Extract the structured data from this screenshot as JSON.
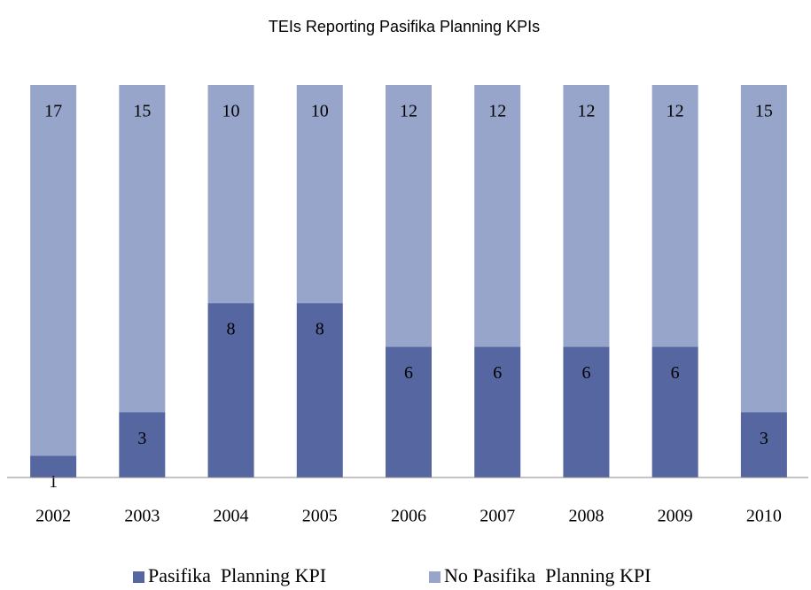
{
  "chart_data": {
    "type": "stacked_bar",
    "title": "TEIs Reporting Pasifika Planning KPIs",
    "categories": [
      "2002",
      "2003",
      "2004",
      "2005",
      "2006",
      "2007",
      "2008",
      "2009",
      "2010"
    ],
    "series": [
      {
        "name": "Pasifika  Planning KPI",
        "color": "#5666a1",
        "values": [
          1,
          3,
          8,
          8,
          6,
          6,
          6,
          6,
          3
        ]
      },
      {
        "name": "No Pasifika  Planning KPI",
        "color": "#98a5ca",
        "values": [
          17,
          15,
          10,
          10,
          12,
          12,
          12,
          12,
          15
        ]
      }
    ],
    "legend": "bottom"
  }
}
